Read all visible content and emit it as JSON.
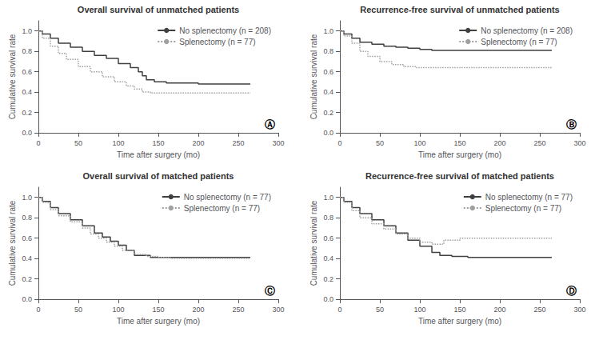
{
  "chart_data": [
    {
      "type": "step",
      "title": "Overall survival of unmatched patients",
      "annotation": "Ⓐ",
      "xlabel": "Time after surgery (mo)",
      "ylabel": "Cumulative survival rate",
      "xlim": [
        0,
        300
      ],
      "xticks": [
        0,
        50,
        100,
        150,
        200,
        250,
        300
      ],
      "ylim": [
        0,
        1.1
      ],
      "yticks": [
        {
          "value": 0,
          "label": "0.0"
        },
        0.2,
        0.4,
        0.6,
        0.8,
        {
          "value": 1.0,
          "label": "1.0"
        }
      ],
      "grid": false,
      "legend": "upper right",
      "series": [
        {
          "name": "No splenectomy (n = 208)",
          "color": "#404040",
          "line_style": "solid",
          "x": [
            0,
            5,
            15,
            25,
            40,
            55,
            70,
            85,
            100,
            115,
            125,
            130,
            135,
            145,
            160,
            175,
            190,
            200,
            215,
            240,
            265
          ],
          "values": [
            1.0,
            0.97,
            0.93,
            0.88,
            0.84,
            0.8,
            0.76,
            0.73,
            0.68,
            0.64,
            0.6,
            0.56,
            0.52,
            0.5,
            0.49,
            0.49,
            0.49,
            0.48,
            0.48,
            0.48,
            0.48
          ]
        },
        {
          "name": "Splenectomy (n = 77)",
          "color": "#a0a0a0",
          "line_style": "dotted",
          "x": [
            0,
            5,
            15,
            25,
            35,
            50,
            65,
            80,
            95,
            110,
            120,
            130,
            140,
            155,
            175,
            195,
            215,
            240,
            265
          ],
          "values": [
            1.0,
            0.93,
            0.85,
            0.78,
            0.72,
            0.65,
            0.6,
            0.55,
            0.5,
            0.46,
            0.43,
            0.4,
            0.39,
            0.39,
            0.39,
            0.39,
            0.39,
            0.39,
            0.39
          ]
        }
      ]
    },
    {
      "type": "step",
      "title": "Recurrence-free survival of unmatched patients",
      "annotation": "Ⓑ",
      "xlabel": "Time after surgery (mo)",
      "ylabel": "Cumulative survival rate",
      "xlim": [
        0,
        300
      ],
      "xticks": [
        0,
        50,
        100,
        150,
        200,
        250,
        300
      ],
      "ylim": [
        0,
        1.1
      ],
      "yticks": [
        {
          "value": 0,
          "label": "0.0"
        },
        0.2,
        0.4,
        0.6,
        0.8,
        {
          "value": 1.0,
          "label": "1.0"
        }
      ],
      "grid": false,
      "legend": "upper right",
      "series": [
        {
          "name": "No splenectomy (n = 208)",
          "color": "#404040",
          "line_style": "solid",
          "x": [
            0,
            5,
            15,
            25,
            40,
            55,
            70,
            85,
            100,
            115,
            125,
            140,
            160,
            185,
            210,
            235,
            265
          ],
          "values": [
            1.0,
            0.97,
            0.93,
            0.89,
            0.87,
            0.85,
            0.84,
            0.83,
            0.82,
            0.81,
            0.81,
            0.81,
            0.81,
            0.81,
            0.81,
            0.81,
            0.81
          ]
        },
        {
          "name": "Splenectomy (n = 77)",
          "color": "#a0a0a0",
          "line_style": "dotted",
          "x": [
            0,
            5,
            15,
            25,
            35,
            50,
            65,
            80,
            95,
            105,
            115,
            130,
            150,
            170,
            195,
            220,
            245,
            265
          ],
          "values": [
            1.0,
            0.95,
            0.88,
            0.8,
            0.75,
            0.7,
            0.67,
            0.65,
            0.64,
            0.64,
            0.64,
            0.64,
            0.64,
            0.64,
            0.64,
            0.64,
            0.64,
            0.64
          ]
        }
      ]
    },
    {
      "type": "step",
      "title": "Overall survival of matched patients",
      "annotation": "Ⓒ",
      "xlabel": "Time after surgery (mo)",
      "ylabel": "Cumulative survival rate",
      "xlim": [
        0,
        300
      ],
      "xticks": [
        0,
        50,
        100,
        150,
        200,
        250,
        300
      ],
      "ylim": [
        0,
        1.1
      ],
      "yticks": [
        {
          "value": 0,
          "label": "0.0"
        },
        0.2,
        0.4,
        0.6,
        0.8,
        {
          "value": 1.0,
          "label": "1.0"
        }
      ],
      "grid": false,
      "legend": "upper right",
      "series": [
        {
          "name": "No splenectomy (n = 77)",
          "color": "#404040",
          "line_style": "solid",
          "x": [
            0,
            5,
            15,
            25,
            40,
            55,
            70,
            80,
            90,
            100,
            110,
            120,
            140,
            160,
            185,
            210,
            265
          ],
          "values": [
            1.0,
            0.96,
            0.9,
            0.84,
            0.78,
            0.72,
            0.65,
            0.61,
            0.57,
            0.53,
            0.48,
            0.43,
            0.41,
            0.41,
            0.41,
            0.41,
            0.41
          ]
        },
        {
          "name": "Splenectomy (n = 77)",
          "color": "#a0a0a0",
          "line_style": "dotted",
          "x": [
            0,
            5,
            15,
            25,
            40,
            55,
            65,
            75,
            85,
            95,
            105,
            120,
            135,
            150,
            165,
            180,
            210,
            265
          ],
          "values": [
            1.0,
            0.95,
            0.88,
            0.82,
            0.76,
            0.7,
            0.64,
            0.6,
            0.56,
            0.52,
            0.48,
            0.44,
            0.42,
            0.41,
            0.4,
            0.4,
            0.4,
            0.4
          ]
        }
      ]
    },
    {
      "type": "step",
      "title": "Recurrence-free survival of matched patients",
      "annotation": "Ⓓ",
      "xlabel": "Time after surgery (mo)",
      "ylabel": "Cumulative survival rate",
      "xlim": [
        0,
        300
      ],
      "xticks": [
        0,
        50,
        100,
        150,
        200,
        250,
        300
      ],
      "ylim": [
        0,
        1.1
      ],
      "yticks": [
        {
          "value": 0,
          "label": "0.0"
        },
        0.2,
        0.4,
        0.6,
        0.8,
        {
          "value": 1.0,
          "label": "1.0"
        }
      ],
      "grid": false,
      "legend": "upper right",
      "series": [
        {
          "name": "No splenectomy (n = 77)",
          "color": "#404040",
          "line_style": "solid",
          "x": [
            0,
            5,
            15,
            25,
            40,
            55,
            70,
            85,
            100,
            115,
            125,
            140,
            160,
            185,
            210,
            265
          ],
          "values": [
            1.0,
            0.96,
            0.9,
            0.84,
            0.78,
            0.72,
            0.65,
            0.58,
            0.52,
            0.46,
            0.43,
            0.42,
            0.41,
            0.41,
            0.41,
            0.41
          ]
        },
        {
          "name": "Splenectomy (n = 77)",
          "color": "#a0a0a0",
          "line_style": "dotted",
          "x": [
            0,
            5,
            15,
            25,
            40,
            55,
            70,
            85,
            100,
            115,
            130,
            150,
            170,
            195,
            220,
            265
          ],
          "values": [
            1.0,
            0.95,
            0.87,
            0.8,
            0.74,
            0.69,
            0.64,
            0.6,
            0.56,
            0.54,
            0.58,
            0.6,
            0.6,
            0.6,
            0.6,
            0.6
          ]
        }
      ]
    }
  ]
}
